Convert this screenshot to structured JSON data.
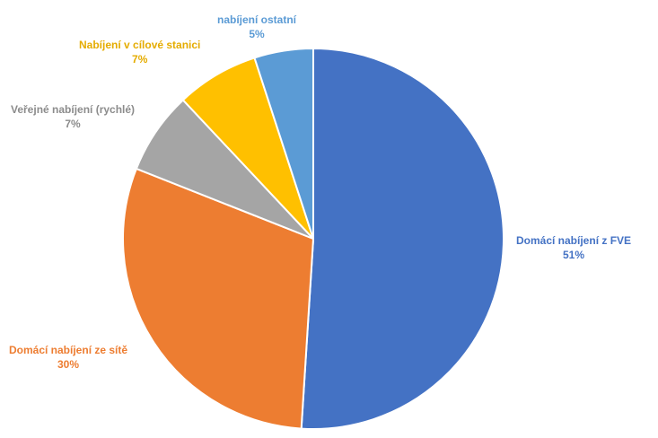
{
  "chart_data": {
    "type": "pie",
    "title": "",
    "slices": [
      {
        "label": "Domácí nabíjení z FVE",
        "percent_label": "51%",
        "value": 51,
        "color": "#4472C4"
      },
      {
        "label": "Domácí nabíjení ze sítě",
        "percent_label": "30%",
        "value": 30,
        "color": "#ED7D31"
      },
      {
        "label": "Veřejné nabíjení (rychlé)",
        "percent_label": "7%",
        "value": 7,
        "color": "#A5A5A5"
      },
      {
        "label": "Nabíjení v cílové stanici",
        "percent_label": "7%",
        "value": 7,
        "color": "#FFC000"
      },
      {
        "label": "nabíjení ostatní",
        "percent_label": "5%",
        "value": 5,
        "color": "#5B9BD5"
      }
    ],
    "start_angle": "12 o'clock",
    "direction": "clockwise",
    "legend": "none",
    "data_labels": "outside"
  }
}
